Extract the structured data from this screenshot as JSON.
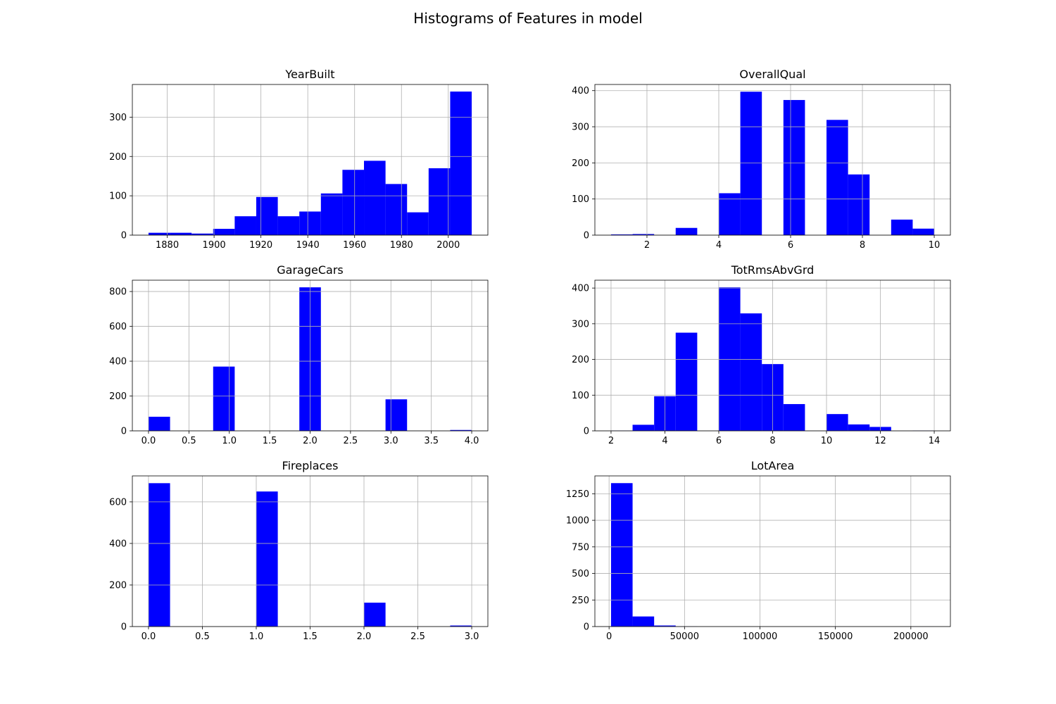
{
  "figure": {
    "title": "Histograms of Features in model"
  },
  "style": {
    "bar_color": "#0000ff",
    "grid_color": "#b0b0b0",
    "axis_color": "#000000"
  },
  "chart_data": [
    {
      "type": "bar",
      "title": "YearBuilt",
      "grid": true,
      "bin_edges": [
        1872,
        1881.2,
        1890.4,
        1899.6,
        1908.8,
        1918,
        1927.2,
        1936.4,
        1945.6,
        1954.8,
        1964,
        1973.2,
        1982.4,
        1991.6,
        2000.8,
        2010
      ],
      "values": [
        6,
        6,
        4,
        16,
        48,
        97,
        48,
        60,
        106,
        166,
        189,
        130,
        58,
        170,
        365
      ],
      "xlim": [
        1865.1,
        2016.9
      ],
      "ylim": [
        0,
        383
      ],
      "xticks": [
        1880,
        1900,
        1920,
        1940,
        1960,
        1980,
        2000
      ],
      "xtick_labels": [
        "1880",
        "1900",
        "1920",
        "1940",
        "1960",
        "1980",
        "2000"
      ],
      "yticks": [
        0,
        100,
        200,
        300
      ],
      "ytick_labels": [
        "0",
        "100",
        "200",
        "300"
      ]
    },
    {
      "type": "bar",
      "title": "OverallQual",
      "grid": true,
      "bin_edges": [
        1,
        1.6,
        2.2,
        2.8,
        3.4,
        4,
        4.6,
        5.2,
        5.8,
        6.4,
        7,
        7.6,
        8.2,
        8.8,
        9.4,
        10
      ],
      "values": [
        2,
        3,
        0,
        20,
        0,
        116,
        397,
        0,
        374,
        0,
        319,
        168,
        0,
        43,
        18
      ],
      "xlim": [
        0.55,
        10.45
      ],
      "ylim": [
        0,
        417
      ],
      "xticks": [
        2,
        4,
        6,
        8,
        10
      ],
      "xtick_labels": [
        "2",
        "4",
        "6",
        "8",
        "10"
      ],
      "yticks": [
        0,
        100,
        200,
        300,
        400
      ],
      "ytick_labels": [
        "0",
        "100",
        "200",
        "300",
        "400"
      ]
    },
    {
      "type": "bar",
      "title": "GarageCars",
      "grid": true,
      "bin_edges": [
        0,
        0.2667,
        0.5333,
        0.8,
        1.0667,
        1.3333,
        1.6,
        1.8667,
        2.1333,
        2.4,
        2.6667,
        2.9333,
        3.2,
        3.4667,
        3.7333,
        4
      ],
      "values": [
        81,
        0,
        0,
        369,
        0,
        0,
        0,
        824,
        0,
        0,
        0,
        181,
        0,
        0,
        5
      ],
      "xlim": [
        -0.2,
        4.2
      ],
      "ylim": [
        0,
        865
      ],
      "xticks": [
        0,
        0.5,
        1,
        1.5,
        2,
        2.5,
        3,
        3.5,
        4
      ],
      "xtick_labels": [
        "0.0",
        "0.5",
        "1.0",
        "1.5",
        "2.0",
        "2.5",
        "3.0",
        "3.5",
        "4.0"
      ],
      "yticks": [
        0,
        200,
        400,
        600,
        800
      ],
      "ytick_labels": [
        "0",
        "200",
        "400",
        "600",
        "800"
      ]
    },
    {
      "type": "bar",
      "title": "TotRmsAbvGrd",
      "grid": true,
      "bin_edges": [
        2,
        2.8,
        3.6,
        4.4,
        5.2,
        6,
        6.8,
        7.6,
        8.4,
        9.2,
        10,
        10.8,
        11.6,
        12.4,
        13.2,
        14
      ],
      "values": [
        1,
        17,
        97,
        275,
        0,
        402,
        329,
        187,
        75,
        0,
        47,
        18,
        11,
        0,
        1
      ],
      "xlim": [
        1.4,
        14.6
      ],
      "ylim": [
        0,
        422
      ],
      "xticks": [
        2,
        4,
        6,
        8,
        10,
        12,
        14
      ],
      "xtick_labels": [
        "2",
        "4",
        "6",
        "8",
        "10",
        "12",
        "14"
      ],
      "yticks": [
        0,
        100,
        200,
        300,
        400
      ],
      "ytick_labels": [
        "0",
        "100",
        "200",
        "300",
        "400"
      ]
    },
    {
      "type": "bar",
      "title": "Fireplaces",
      "grid": true,
      "bin_edges": [
        0,
        0.2,
        0.4,
        0.6,
        0.8,
        1,
        1.2,
        1.4,
        1.6,
        1.8,
        2,
        2.2,
        2.4,
        2.6,
        2.8,
        3
      ],
      "values": [
        690,
        0,
        0,
        0,
        0,
        650,
        0,
        0,
        0,
        0,
        115,
        0,
        0,
        0,
        5
      ],
      "xlim": [
        -0.15,
        3.15
      ],
      "ylim": [
        0,
        725
      ],
      "xticks": [
        0,
        0.5,
        1,
        1.5,
        2,
        2.5,
        3
      ],
      "xtick_labels": [
        "0.0",
        "0.5",
        "1.0",
        "1.5",
        "2.0",
        "2.5",
        "3.0"
      ],
      "yticks": [
        0,
        200,
        400,
        600
      ],
      "ytick_labels": [
        "0",
        "200",
        "400",
        "600"
      ]
    },
    {
      "type": "bar",
      "title": "LotArea",
      "grid": true,
      "bin_edges": [
        1300,
        15580,
        29860,
        44140,
        58420,
        72700,
        86980,
        101260,
        115540,
        129820,
        144100,
        158380,
        172660,
        186940,
        201220,
        215500
      ],
      "values": [
        1350,
        95,
        10,
        3,
        0,
        0,
        0,
        0,
        0,
        0,
        0,
        0,
        0,
        0,
        1
      ],
      "xlim": [
        -9410,
        226210
      ],
      "ylim": [
        0,
        1418
      ],
      "xticks": [
        0,
        50000,
        100000,
        150000,
        200000
      ],
      "xtick_labels": [
        "0",
        "50000",
        "100000",
        "150000",
        "200000"
      ],
      "yticks": [
        0,
        250,
        500,
        750,
        1000,
        1250
      ],
      "ytick_labels": [
        "0",
        "250",
        "500",
        "750",
        "1000",
        "1250"
      ]
    }
  ]
}
